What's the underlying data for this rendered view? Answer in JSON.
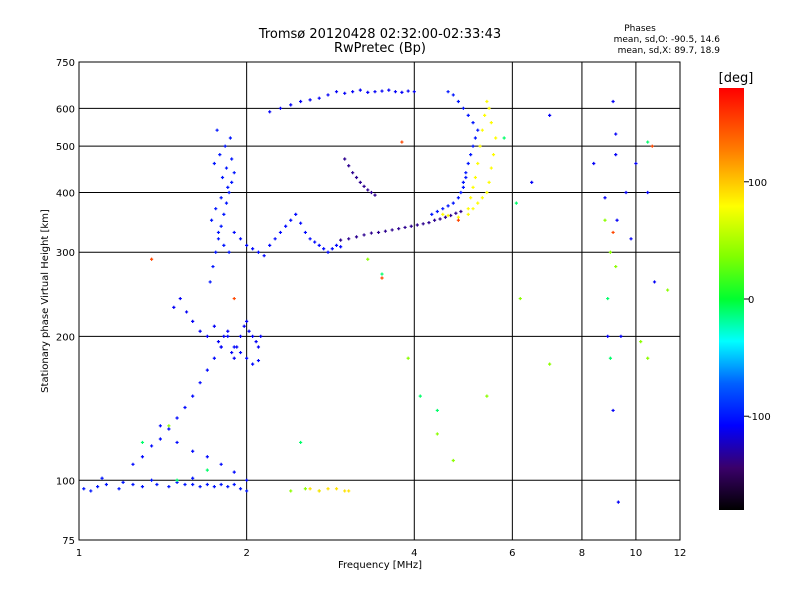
{
  "chart_data": {
    "type": "scatter",
    "title": "Tromsø 20120428 02:32:00-02:33:43",
    "subtitle": "RwPretec (Bp)",
    "xlabel": "Frequency [MHz]",
    "ylabel": "Stationary phase Virtual Height [km]",
    "xscale": "log",
    "yscale": "log",
    "xlim": [
      1,
      12
    ],
    "ylim": [
      75,
      750
    ],
    "x_ticks": [
      1,
      2,
      4,
      6,
      8,
      10,
      12
    ],
    "x_tick_labels": [
      "1",
      "2",
      "4",
      "6",
      "8",
      "10",
      "12"
    ],
    "y_ticks": [
      75,
      100,
      200,
      300,
      400,
      500,
      600,
      750
    ],
    "y_tick_labels": [
      "75",
      "100",
      "200",
      "300",
      "400",
      "500",
      "600",
      "750"
    ],
    "grid": true,
    "phases_box": {
      "title": "Phases",
      "line1": "mean, sd,O: -90.5, 14.6",
      "line2": "mean, sd,X: 89.7, 18.9"
    },
    "colorbar": {
      "label": "[deg]",
      "range": [
        -180,
        180
      ],
      "ticks": [
        100,
        0,
        -100
      ],
      "tick_labels": [
        "100",
        "0",
        "-100"
      ]
    },
    "series": [
      {
        "x": [
          1.02,
          1.05,
          1.08,
          1.12,
          1.18,
          1.25,
          1.3,
          1.38,
          1.45,
          1.5,
          1.55,
          1.6,
          1.65,
          1.7,
          1.75,
          1.8,
          1.85,
          1.9,
          1.95,
          2.0,
          1.1,
          1.2,
          1.35,
          1.6
        ],
        "y": [
          96,
          95,
          97,
          98,
          96,
          98,
          97,
          98,
          97,
          99,
          98,
          98,
          97,
          98,
          97,
          98,
          97,
          98,
          96,
          95,
          101,
          99,
          100,
          101
        ],
        "phase": -100
      },
      {
        "x": [
          1.25,
          1.3,
          1.35,
          1.4,
          1.45,
          1.5,
          1.55,
          1.6,
          1.65,
          1.7,
          1.75,
          1.8,
          1.85,
          1.9,
          1.95,
          2.0,
          2.05,
          2.1,
          1.4,
          1.5,
          1.6,
          1.7,
          1.8,
          1.9,
          2.0
        ],
        "y": [
          108,
          112,
          118,
          122,
          128,
          135,
          142,
          150,
          160,
          170,
          180,
          190,
          200,
          190,
          185,
          180,
          175,
          178,
          130,
          120,
          115,
          112,
          108,
          104,
          100
        ],
        "phase": -105
      },
      {
        "x": [
          1.48,
          1.52,
          1.56,
          1.6,
          1.65,
          1.7,
          1.75,
          1.78,
          1.8,
          1.82,
          1.85,
          1.88,
          1.9,
          1.92,
          1.95,
          1.98,
          2.0,
          2.02,
          2.05,
          2.08,
          2.1,
          2.12
        ],
        "y": [
          230,
          240,
          225,
          215,
          205,
          200,
          210,
          195,
          190,
          200,
          205,
          185,
          180,
          190,
          200,
          210,
          215,
          205,
          200,
          195,
          190,
          200
        ],
        "phase": -110
      },
      {
        "x": [
          1.72,
          1.74,
          1.76,
          1.78,
          1.8,
          1.82,
          1.84,
          1.86,
          1.88,
          1.9,
          1.75,
          1.79,
          1.83,
          1.87,
          1.77,
          1.81,
          1.85,
          1.73,
          1.78,
          1.82,
          1.86,
          1.76,
          1.8,
          1.84,
          1.88
        ],
        "y": [
          260,
          280,
          300,
          320,
          340,
          360,
          380,
          400,
          420,
          440,
          460,
          480,
          500,
          520,
          540,
          430,
          410,
          350,
          330,
          310,
          300,
          370,
          390,
          450,
          470
        ],
        "phase": -100
      },
      {
        "x": [
          1.9,
          1.95,
          2.0,
          2.05,
          2.1,
          2.15,
          2.2,
          2.25,
          2.3,
          2.35,
          2.4,
          2.45,
          2.5,
          2.55,
          2.6,
          2.65,
          2.7,
          2.75,
          2.8,
          2.85,
          2.9,
          2.95
        ],
        "y": [
          330,
          320,
          310,
          305,
          300,
          295,
          310,
          320,
          330,
          340,
          350,
          360,
          345,
          330,
          320,
          315,
          310,
          305,
          300,
          305,
          310,
          308
        ],
        "phase": -105
      },
      {
        "x": [
          2.2,
          2.3,
          2.4,
          2.5,
          2.6,
          2.7,
          2.8,
          2.9,
          3.0,
          3.1,
          3.2,
          3.3,
          3.4,
          3.5,
          3.6,
          3.7,
          3.8,
          3.9,
          4.0
        ],
        "y": [
          590,
          600,
          610,
          620,
          625,
          630,
          640,
          650,
          645,
          650,
          655,
          648,
          650,
          652,
          655,
          650,
          648,
          652,
          650
        ],
        "phase": -110
      },
      {
        "x": [
          2.95,
          3.05,
          3.15,
          3.25,
          3.35,
          3.45,
          3.55,
          3.65,
          3.75,
          3.85,
          3.95,
          4.05,
          4.15,
          4.25,
          4.35,
          4.45,
          4.55,
          4.65,
          4.75,
          4.85
        ],
        "y": [
          318,
          320,
          323,
          326,
          329,
          330,
          332,
          334,
          336,
          338,
          340,
          342,
          344,
          346,
          350,
          352,
          355,
          358,
          362,
          365
        ],
        "phase": -135
      },
      {
        "x": [
          3.0,
          3.05,
          3.1,
          3.15,
          3.2,
          3.25,
          3.3,
          3.35,
          3.4
        ],
        "y": [
          470,
          455,
          440,
          430,
          420,
          412,
          405,
          400,
          395
        ],
        "phase": -135
      },
      {
        "x": [
          4.3,
          4.4,
          4.5,
          4.6,
          4.7,
          4.8,
          4.85,
          4.9,
          4.95,
          5.0,
          5.05,
          5.1,
          5.15,
          5.2,
          5.1,
          5.0,
          4.9,
          4.8,
          4.7,
          4.6,
          4.95,
          4.9
        ],
        "y": [
          360,
          365,
          370,
          375,
          380,
          390,
          400,
          420,
          440,
          460,
          480,
          500,
          520,
          540,
          560,
          580,
          600,
          620,
          640,
          650,
          430,
          410
        ],
        "phase": -100
      },
      {
        "x": [
          5.0,
          5.1,
          5.2,
          5.3,
          5.4,
          5.45,
          5.5,
          5.55,
          5.6,
          5.5,
          5.45,
          5.4,
          5.35,
          5.3,
          5.25,
          5.2,
          5.15,
          5.1,
          5.05,
          5.0,
          4.8,
          4.6,
          4.5
        ],
        "y": [
          360,
          370,
          380,
          390,
          400,
          420,
          450,
          480,
          520,
          560,
          600,
          620,
          580,
          540,
          500,
          460,
          430,
          410,
          390,
          370,
          355,
          358,
          360
        ],
        "phase": 80
      },
      {
        "x": [
          1.45,
          2.4,
          2.55,
          2.7,
          3.3,
          3.9,
          4.4,
          4.7,
          5.4,
          6.2,
          7.0,
          8.8,
          9.0,
          9.2,
          10.2,
          10.5,
          11.4
        ],
        "y": [
          130,
          95,
          96,
          95,
          290,
          180,
          125,
          110,
          150,
          240,
          175,
          350,
          300,
          280,
          195,
          180,
          250
        ],
        "phase": 40
      },
      {
        "x": [
          2.6,
          2.7,
          2.8,
          2.9,
          3.0,
          3.05
        ],
        "y": [
          96,
          95,
          96,
          96,
          95,
          95
        ],
        "phase": 90
      },
      {
        "x": [
          6.5,
          7.0,
          8.4,
          8.8,
          9.1,
          9.2,
          9.2,
          9.25,
          9.4,
          9.6,
          9.8,
          10.0,
          10.5,
          10.8,
          9.1,
          8.9,
          9.3
        ],
        "y": [
          420,
          580,
          460,
          390,
          620,
          530,
          480,
          350,
          200,
          400,
          320,
          460,
          400,
          260,
          140,
          200,
          90
        ],
        "phase": -110
      },
      {
        "x": [
          1.3,
          1.5,
          1.7,
          2.5,
          3.5,
          4.1,
          4.4,
          5.8,
          6.1,
          8.9,
          10.5,
          9.0
        ],
        "y": [
          120,
          100,
          105,
          120,
          270,
          150,
          140,
          520,
          380,
          240,
          510,
          180
        ],
        "phase": -10
      },
      {
        "x": [
          1.35,
          1.9,
          3.5,
          3.8,
          4.8,
          9.1,
          10.7
        ],
        "y": [
          290,
          240,
          265,
          510,
          350,
          330,
          500
        ],
        "phase": 150
      }
    ]
  }
}
